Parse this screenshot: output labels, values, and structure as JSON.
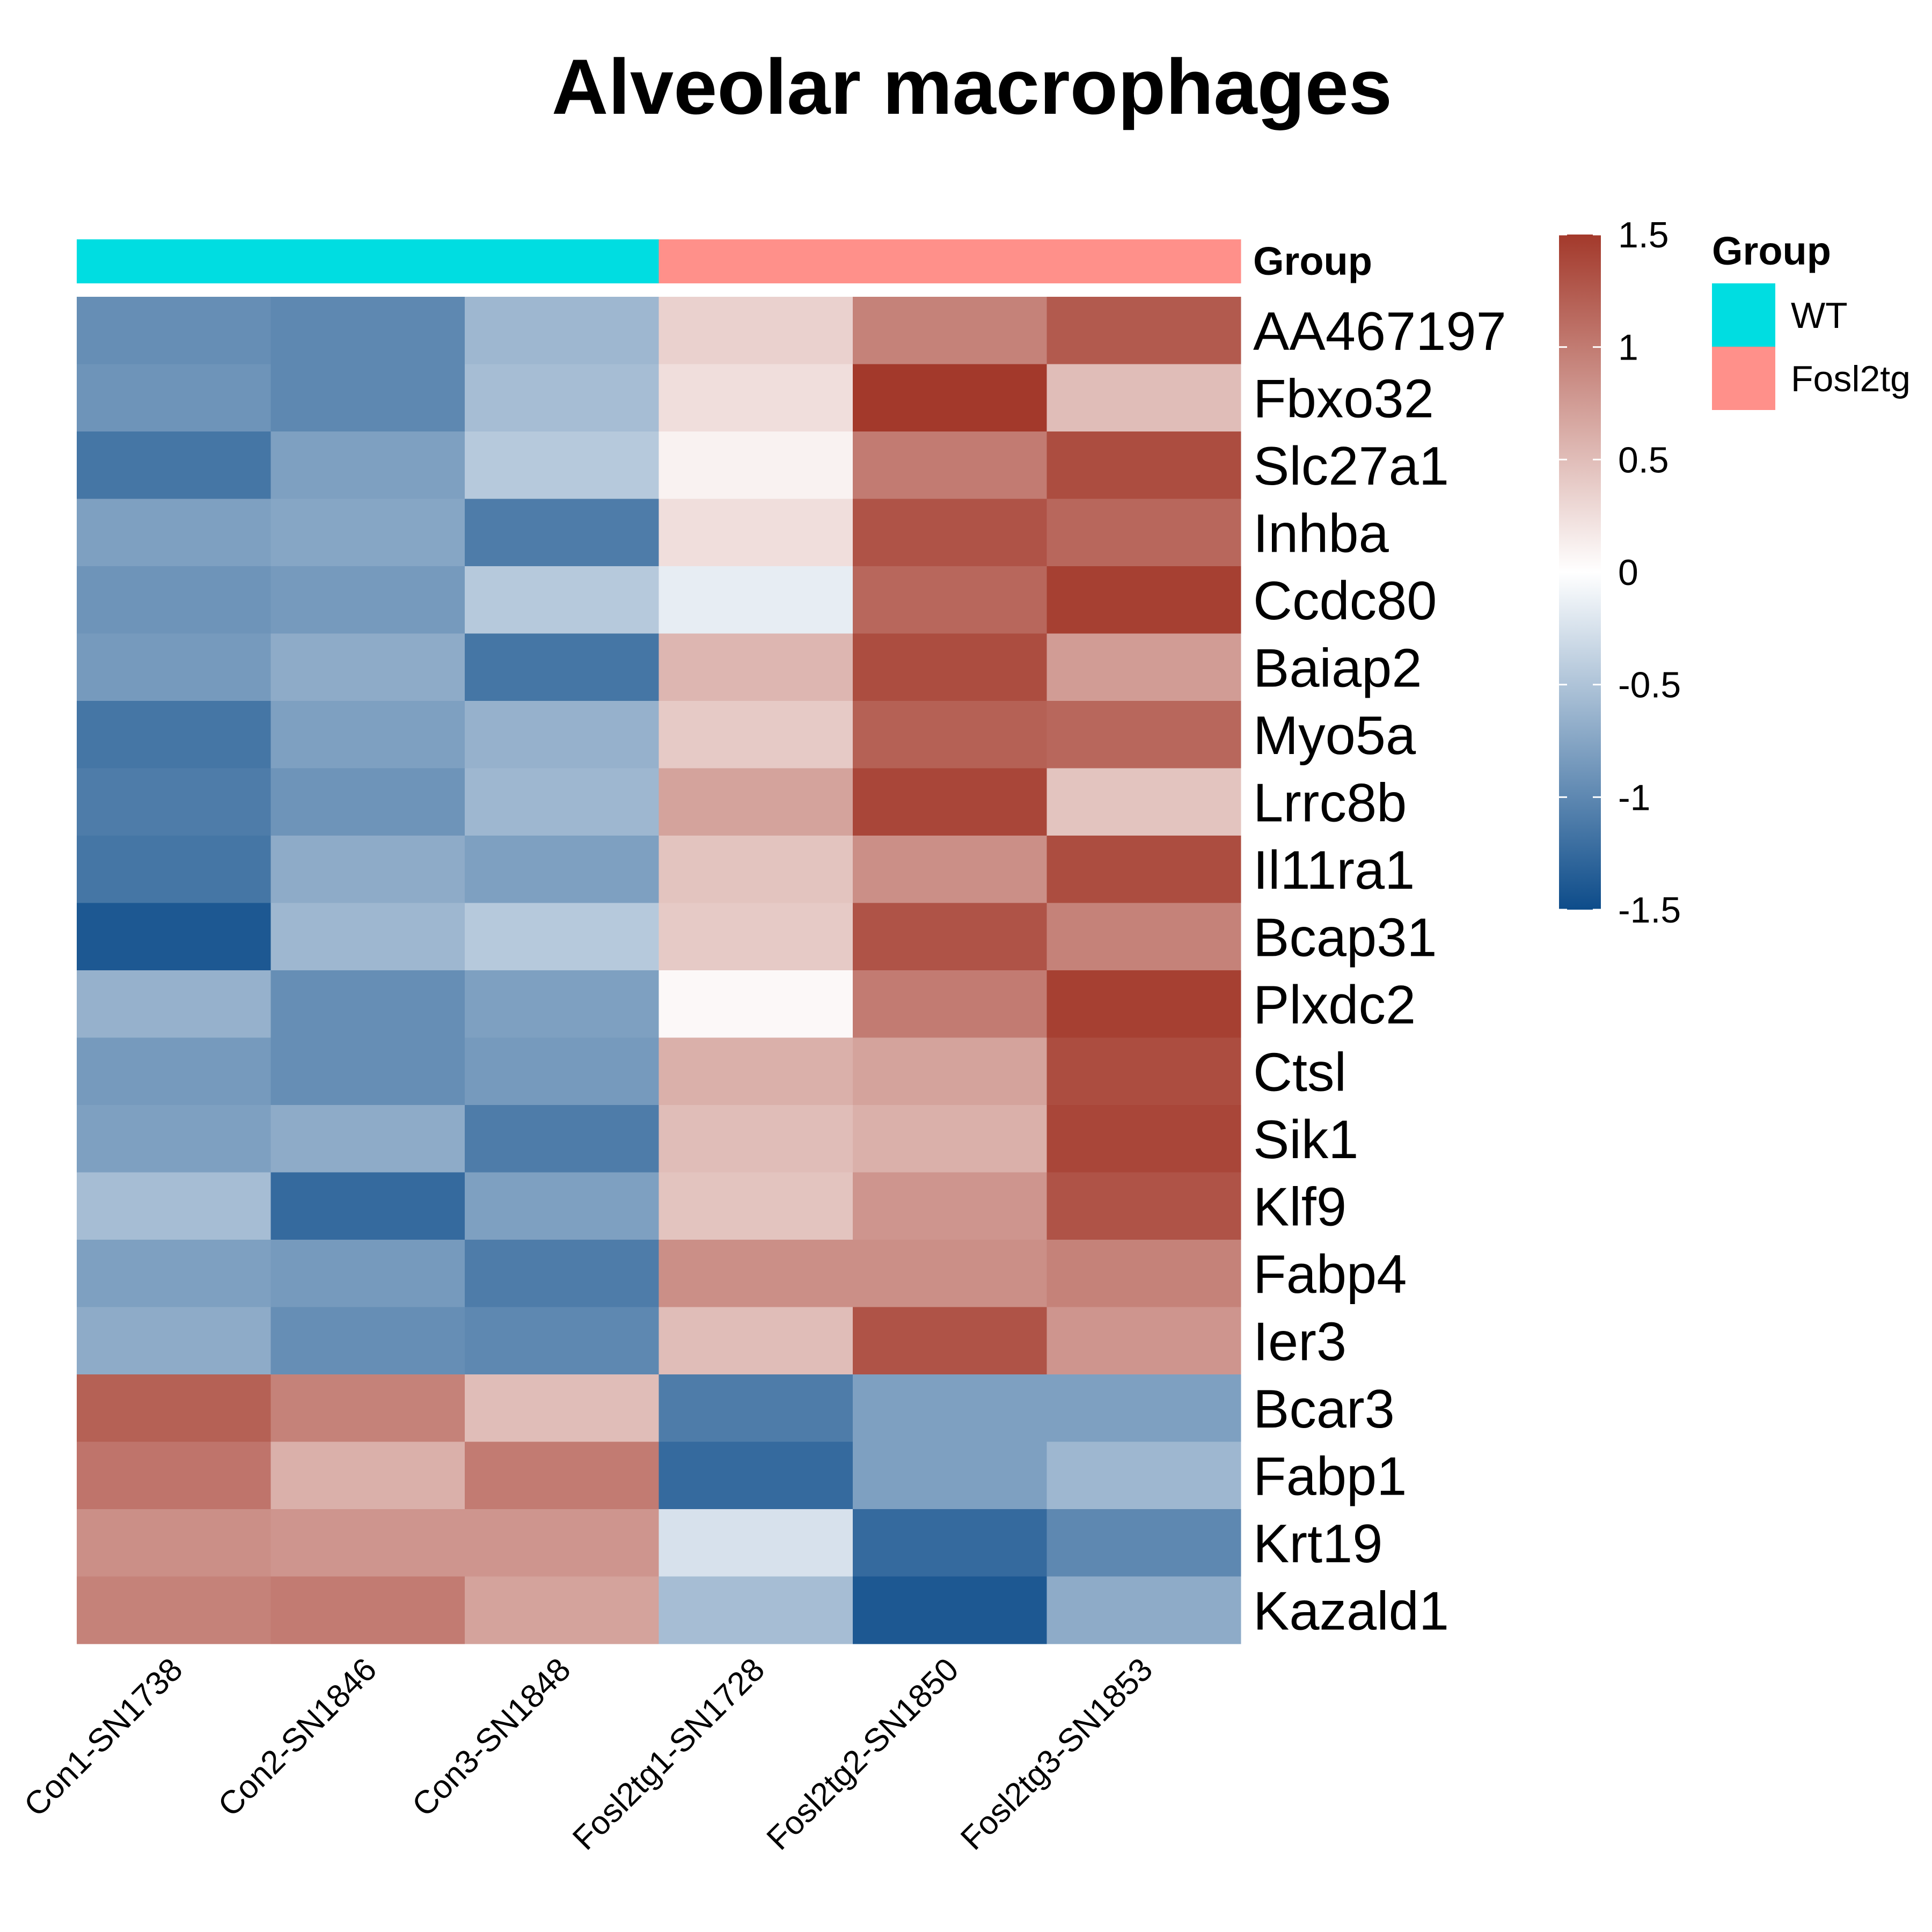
{
  "chart_data": {
    "type": "heatmap",
    "title": "Alveolar macrophages",
    "columns": [
      "Con1-SN1738",
      "Con2-SN1846",
      "Con3-SN1848",
      "Fosl2tg1-SN1728",
      "Fosl2tg2-SN1850",
      "Fosl2tg3-SN1853"
    ],
    "rows": [
      "AA467197",
      "Fbxo32",
      "Slc27a1",
      "Inhba",
      "Ccdc80",
      "Baiap2",
      "Myo5a",
      "Lrrc8b",
      "Il11ra1",
      "Bcap31",
      "Plxdc2",
      "Ctsl",
      "Sik1",
      "Klf9",
      "Fabp4",
      "Ier3",
      "Bcar3",
      "Fabp1",
      "Krt19",
      "Kazald1"
    ],
    "values": [
      [
        -0.95,
        -1.0,
        -0.6,
        0.35,
        0.95,
        1.25
      ],
      [
        -0.9,
        -1.0,
        -0.55,
        0.25,
        1.55,
        0.5
      ],
      [
        -1.15,
        -0.8,
        -0.45,
        0.1,
        1.0,
        1.35
      ],
      [
        -0.8,
        -0.75,
        -1.1,
        0.25,
        1.3,
        1.15
      ],
      [
        -0.9,
        -0.85,
        -0.45,
        -0.15,
        1.15,
        1.45
      ],
      [
        -0.85,
        -0.7,
        -1.15,
        0.55,
        1.35,
        0.75
      ],
      [
        -1.15,
        -0.8,
        -0.65,
        0.4,
        1.2,
        1.15
      ],
      [
        -1.1,
        -0.9,
        -0.6,
        0.7,
        1.4,
        0.45
      ],
      [
        -1.15,
        -0.7,
        -0.8,
        0.45,
        0.85,
        1.35
      ],
      [
        -1.4,
        -0.6,
        -0.45,
        0.4,
        1.3,
        0.95
      ],
      [
        -0.65,
        -0.95,
        -0.8,
        0.05,
        1.0,
        1.45
      ],
      [
        -0.85,
        -0.95,
        -0.85,
        0.6,
        0.7,
        1.35
      ],
      [
        -0.8,
        -0.7,
        -1.1,
        0.5,
        0.6,
        1.4
      ],
      [
        -0.55,
        -1.25,
        -0.8,
        0.45,
        0.8,
        1.3
      ],
      [
        -0.8,
        -0.85,
        -1.1,
        0.85,
        0.85,
        0.95
      ],
      [
        -0.7,
        -0.95,
        -1.0,
        0.5,
        1.3,
        0.8
      ],
      [
        1.2,
        0.95,
        0.5,
        -1.1,
        -0.8,
        -0.8
      ],
      [
        1.05,
        0.6,
        1.0,
        -1.25,
        -0.8,
        -0.6
      ],
      [
        0.85,
        0.8,
        0.8,
        -0.25,
        -1.25,
        -1.0
      ],
      [
        0.95,
        1.0,
        0.7,
        -0.55,
        -1.4,
        -0.7
      ]
    ],
    "color_scale": {
      "low": "#0d4c8a",
      "mid": "#ffffff",
      "high": "#a3392b",
      "min": -1.5,
      "max": 1.5,
      "ticks": [
        1.5,
        1,
        0.5,
        0,
        -0.5,
        -1,
        -1.5
      ],
      "tick_labels": [
        "1.5",
        "1",
        "0.5",
        "0",
        "-0.5",
        "-1",
        "-1.5"
      ]
    },
    "annotation": {
      "name": "Group",
      "levels": [
        {
          "label": "WT",
          "color": "#00dde1"
        },
        {
          "label": "Fosl2tg",
          "color": "#ff908a"
        }
      ],
      "column_groups": [
        "WT",
        "WT",
        "WT",
        "Fosl2tg",
        "Fosl2tg",
        "Fosl2tg"
      ]
    },
    "legend_title": "Group"
  }
}
